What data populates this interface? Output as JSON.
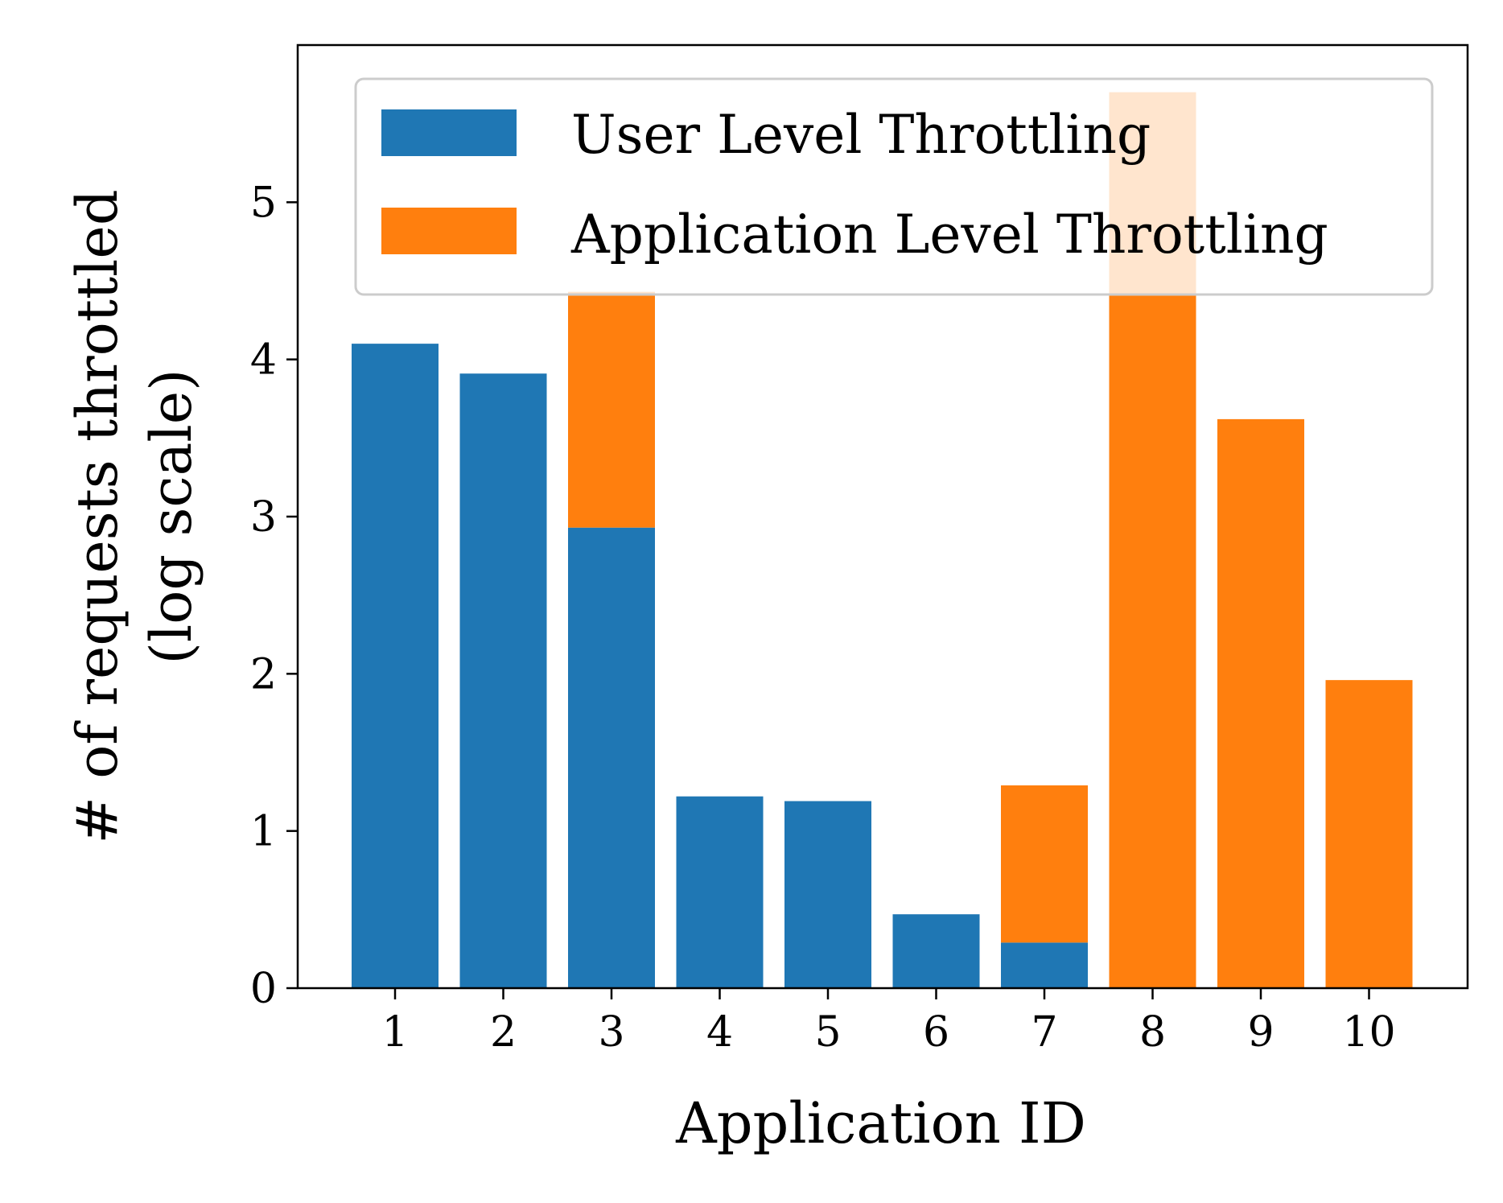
{
  "chart_data": {
    "type": "bar",
    "stacked": true,
    "categories": [
      "1",
      "2",
      "3",
      "4",
      "5",
      "6",
      "7",
      "8",
      "9",
      "10"
    ],
    "series": [
      {
        "name": "User Level Throttling",
        "color": "#1f77b4",
        "values": [
          4.1,
          3.91,
          2.93,
          1.22,
          1.19,
          0.47,
          0.29,
          0,
          0,
          0
        ]
      },
      {
        "name": "Application Level Throttling",
        "color": "#ff7f0e",
        "values": [
          0,
          0,
          1.5,
          0,
          0,
          0,
          1.0,
          5.7,
          3.62,
          1.96
        ]
      }
    ],
    "xlabel": "Application ID",
    "ylabel_lines": [
      "# of requests throttled",
      "(log scale)"
    ],
    "ylim": [
      0,
      6.0
    ],
    "yticks": [
      "0",
      "1",
      "2",
      "3",
      "4",
      "5"
    ],
    "grid": false,
    "legend_position": "top"
  }
}
